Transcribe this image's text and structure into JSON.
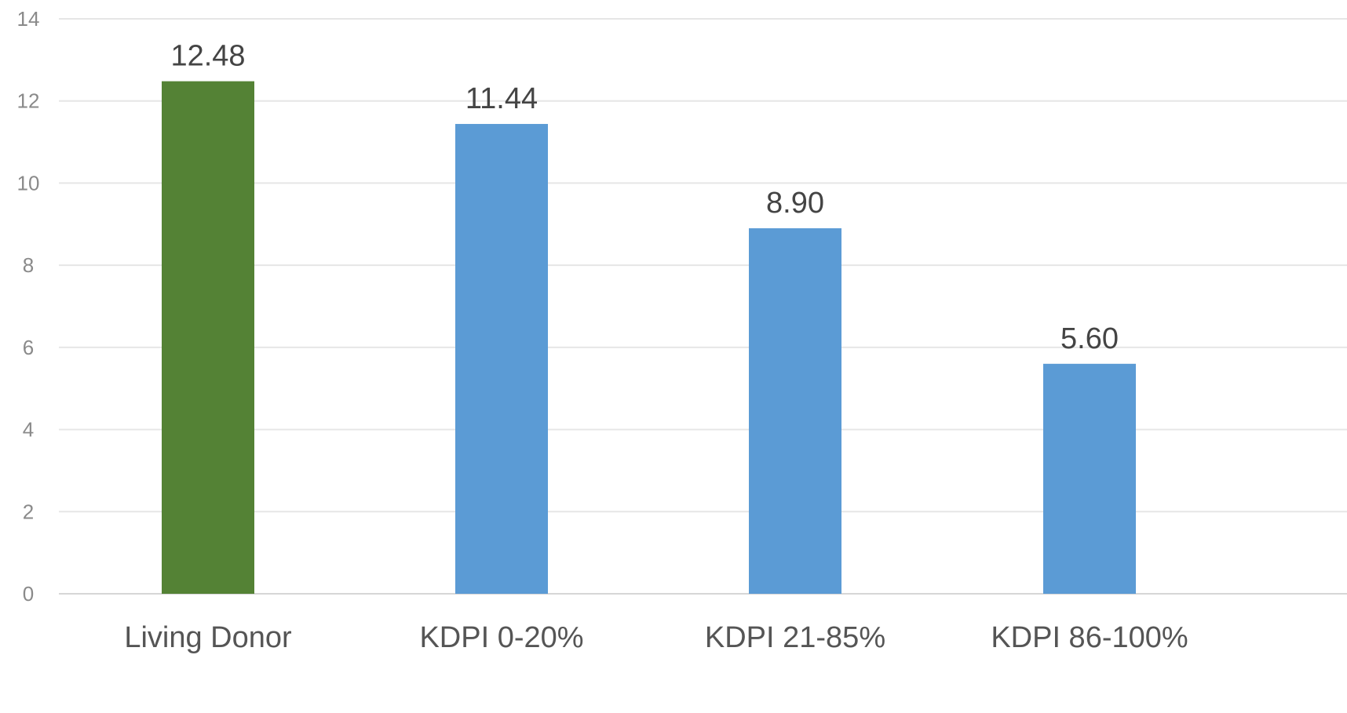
{
  "chart_data": {
    "type": "bar",
    "categories": [
      "Living Donor",
      "KDPI 0-20%",
      "KDPI 21-85%",
      "KDPI 86-100%"
    ],
    "values": [
      12.48,
      11.44,
      8.9,
      5.6
    ],
    "data_labels": [
      "12.48",
      "11.44",
      "8.90",
      "5.60"
    ],
    "bar_colors": [
      "#548235",
      "#5b9bd5",
      "#5b9bd5",
      "#5b9bd5"
    ],
    "ylim": [
      0,
      14
    ],
    "yticks": [
      0,
      2,
      4,
      6,
      8,
      10,
      12,
      14
    ],
    "grid": true,
    "legend": "none",
    "title": "",
    "xlabel": "",
    "ylabel": ""
  }
}
